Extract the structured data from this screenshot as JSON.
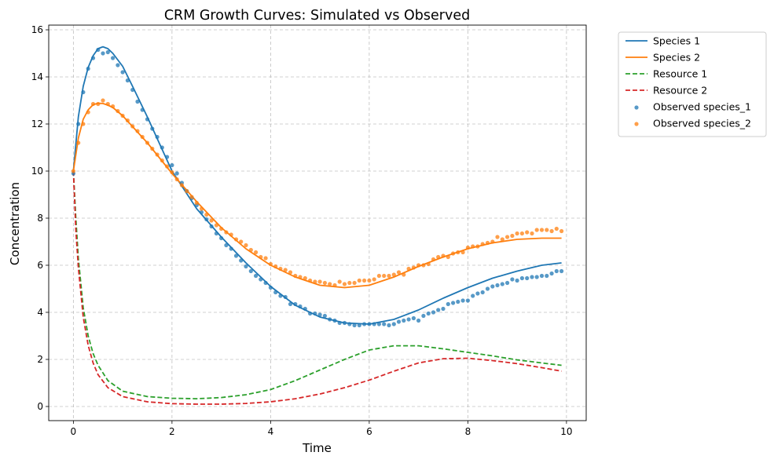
{
  "chart_data": {
    "type": "line",
    "title": "CRM Growth Curves: Simulated vs Observed",
    "xlabel": "Time",
    "ylabel": "Concentration",
    "xlim": [
      -0.5,
      10.4
    ],
    "ylim": [
      -0.6,
      16.2
    ],
    "xticks": [
      0,
      2,
      4,
      6,
      8,
      10
    ],
    "yticks": [
      0,
      2,
      4,
      6,
      8,
      10,
      12,
      14,
      16
    ],
    "grid": true,
    "legend_position": "outside top-right",
    "series": [
      {
        "name": "Species 1",
        "style": "solid",
        "color": "#1f77b4",
        "x": [
          0,
          0.1,
          0.2,
          0.3,
          0.4,
          0.5,
          0.6,
          0.7,
          0.8,
          1.0,
          1.2,
          1.5,
          2.0,
          2.5,
          3.0,
          3.5,
          4.0,
          4.5,
          5.0,
          5.5,
          6.0,
          6.5,
          7.0,
          7.5,
          8.0,
          8.5,
          9.0,
          9.5,
          9.9
        ],
        "y": [
          10.0,
          12.3,
          13.6,
          14.4,
          14.9,
          15.2,
          15.28,
          15.2,
          15.0,
          14.45,
          13.6,
          12.3,
          10.0,
          8.4,
          7.2,
          6.1,
          5.1,
          4.3,
          3.8,
          3.55,
          3.5,
          3.7,
          4.1,
          4.6,
          5.05,
          5.45,
          5.75,
          6.0,
          6.1
        ]
      },
      {
        "name": "Species 2",
        "style": "solid",
        "color": "#ff7f0e",
        "x": [
          0,
          0.1,
          0.2,
          0.3,
          0.4,
          0.5,
          0.6,
          0.7,
          0.8,
          1.0,
          1.5,
          2.0,
          2.5,
          3.0,
          3.5,
          4.0,
          4.5,
          5.0,
          5.5,
          6.0,
          6.5,
          7.0,
          7.5,
          8.0,
          8.5,
          9.0,
          9.5,
          9.9
        ],
        "y": [
          10.0,
          11.4,
          12.2,
          12.6,
          12.82,
          12.88,
          12.87,
          12.8,
          12.7,
          12.35,
          11.2,
          9.9,
          8.7,
          7.6,
          6.7,
          6.0,
          5.5,
          5.15,
          5.05,
          5.15,
          5.5,
          5.95,
          6.35,
          6.7,
          6.95,
          7.1,
          7.15,
          7.15
        ]
      },
      {
        "name": "Resource 1",
        "style": "dashed",
        "color": "#2ca02c",
        "x": [
          0,
          0.05,
          0.1,
          0.2,
          0.3,
          0.4,
          0.5,
          0.7,
          1.0,
          1.5,
          2.0,
          2.5,
          3.0,
          3.5,
          4.0,
          4.5,
          5.0,
          5.5,
          6.0,
          6.5,
          7.0,
          7.5,
          8.0,
          8.5,
          9.0,
          9.5,
          9.9
        ],
        "y": [
          10.0,
          8.0,
          6.3,
          4.2,
          3.0,
          2.25,
          1.75,
          1.1,
          0.65,
          0.42,
          0.35,
          0.33,
          0.38,
          0.5,
          0.72,
          1.1,
          1.55,
          2.0,
          2.4,
          2.58,
          2.58,
          2.45,
          2.3,
          2.15,
          1.98,
          1.85,
          1.75
        ]
      },
      {
        "name": "Resource 2",
        "style": "dashed",
        "color": "#d62728",
        "x": [
          0,
          0.05,
          0.1,
          0.2,
          0.3,
          0.4,
          0.5,
          0.7,
          1.0,
          1.5,
          2.0,
          2.5,
          3.0,
          3.5,
          4.0,
          4.5,
          5.0,
          5.5,
          6.0,
          6.5,
          7.0,
          7.5,
          8.0,
          8.5,
          9.0,
          9.5,
          9.9
        ],
        "y": [
          10.0,
          7.5,
          5.9,
          3.8,
          2.6,
          1.85,
          1.35,
          0.8,
          0.42,
          0.2,
          0.12,
          0.1,
          0.1,
          0.13,
          0.2,
          0.33,
          0.53,
          0.8,
          1.12,
          1.5,
          1.85,
          2.03,
          2.05,
          1.95,
          1.82,
          1.65,
          1.5
        ]
      }
    ],
    "scatter_series": [
      {
        "name": "Observed species_1",
        "color": "#1f77b4",
        "x": [
          0,
          0.1,
          0.2,
          0.3,
          0.4,
          0.5,
          0.6,
          0.7,
          0.8,
          0.9,
          1.0,
          1.1,
          1.2,
          1.3,
          1.4,
          1.5,
          1.6,
          1.7,
          1.8,
          1.9,
          2.0,
          2.1,
          2.2,
          2.3,
          2.4,
          2.5,
          2.6,
          2.7,
          2.8,
          2.9,
          3.0,
          3.1,
          3.2,
          3.3,
          3.4,
          3.5,
          3.6,
          3.7,
          3.8,
          3.9,
          4.0,
          4.1,
          4.2,
          4.3,
          4.4,
          4.5,
          4.6,
          4.7,
          4.8,
          4.9,
          5.0,
          5.1,
          5.2,
          5.3,
          5.4,
          5.5,
          5.6,
          5.7,
          5.8,
          5.9,
          6.0,
          6.1,
          6.2,
          6.3,
          6.4,
          6.5,
          6.6,
          6.7,
          6.8,
          6.9,
          7.0,
          7.1,
          7.2,
          7.3,
          7.4,
          7.5,
          7.6,
          7.7,
          7.8,
          7.9,
          8.0,
          8.1,
          8.2,
          8.3,
          8.4,
          8.5,
          8.6,
          8.7,
          8.8,
          8.9,
          9.0,
          9.1,
          9.2,
          9.3,
          9.4,
          9.5,
          9.6,
          9.7,
          9.8,
          9.9
        ],
        "y": [
          9.9,
          12.0,
          13.35,
          14.35,
          14.8,
          15.15,
          15.0,
          15.05,
          14.8,
          14.5,
          14.2,
          13.85,
          13.45,
          12.95,
          12.6,
          12.2,
          11.8,
          11.45,
          11.0,
          10.6,
          10.25,
          9.9,
          9.5,
          9.15,
          8.85,
          8.55,
          8.25,
          7.95,
          7.65,
          7.35,
          7.15,
          6.85,
          6.7,
          6.4,
          6.2,
          5.95,
          5.75,
          5.55,
          5.4,
          5.25,
          5.05,
          4.85,
          4.7,
          4.65,
          4.35,
          4.35,
          4.25,
          4.15,
          3.95,
          3.95,
          3.9,
          3.85,
          3.7,
          3.65,
          3.55,
          3.55,
          3.5,
          3.45,
          3.45,
          3.5,
          3.5,
          3.5,
          3.5,
          3.5,
          3.45,
          3.5,
          3.6,
          3.65,
          3.7,
          3.75,
          3.65,
          3.85,
          3.95,
          4.0,
          4.1,
          4.15,
          4.35,
          4.4,
          4.45,
          4.5,
          4.5,
          4.7,
          4.8,
          4.85,
          5.0,
          5.1,
          5.15,
          5.2,
          5.25,
          5.4,
          5.35,
          5.45,
          5.45,
          5.5,
          5.5,
          5.55,
          5.55,
          5.65,
          5.75,
          5.75
        ]
      },
      {
        "name": "Observed species_2",
        "color": "#ff7f0e",
        "x": [
          0,
          0.1,
          0.2,
          0.3,
          0.4,
          0.5,
          0.6,
          0.7,
          0.8,
          0.9,
          1.0,
          1.1,
          1.2,
          1.3,
          1.4,
          1.5,
          1.6,
          1.7,
          1.8,
          1.9,
          2.0,
          2.1,
          2.2,
          2.3,
          2.4,
          2.5,
          2.6,
          2.7,
          2.8,
          2.9,
          3.0,
          3.1,
          3.2,
          3.3,
          3.4,
          3.5,
          3.6,
          3.7,
          3.8,
          3.9,
          4.0,
          4.1,
          4.2,
          4.3,
          4.4,
          4.5,
          4.6,
          4.7,
          4.8,
          4.9,
          5.0,
          5.1,
          5.2,
          5.3,
          5.4,
          5.5,
          5.6,
          5.7,
          5.8,
          5.9,
          6.0,
          6.1,
          6.2,
          6.3,
          6.4,
          6.5,
          6.6,
          6.7,
          6.8,
          6.9,
          7.0,
          7.1,
          7.2,
          7.3,
          7.4,
          7.5,
          7.6,
          7.7,
          7.8,
          7.9,
          8.0,
          8.1,
          8.2,
          8.3,
          8.4,
          8.5,
          8.6,
          8.7,
          8.8,
          8.9,
          9.0,
          9.1,
          9.2,
          9.3,
          9.4,
          9.5,
          9.6,
          9.7,
          9.8,
          9.9
        ],
        "y": [
          10.0,
          11.2,
          12.0,
          12.5,
          12.85,
          12.85,
          13.0,
          12.85,
          12.75,
          12.55,
          12.35,
          12.15,
          11.9,
          11.7,
          11.45,
          11.2,
          10.95,
          10.7,
          10.45,
          10.2,
          9.95,
          9.65,
          9.4,
          9.15,
          8.9,
          8.65,
          8.4,
          8.15,
          7.9,
          7.7,
          7.55,
          7.4,
          7.3,
          7.1,
          7.0,
          6.85,
          6.65,
          6.55,
          6.35,
          6.3,
          6.05,
          5.95,
          5.85,
          5.8,
          5.7,
          5.55,
          5.5,
          5.45,
          5.35,
          5.3,
          5.3,
          5.25,
          5.2,
          5.15,
          5.3,
          5.2,
          5.25,
          5.25,
          5.35,
          5.35,
          5.35,
          5.4,
          5.55,
          5.55,
          5.55,
          5.6,
          5.7,
          5.6,
          5.85,
          5.9,
          6.0,
          6.0,
          6.05,
          6.25,
          6.35,
          6.4,
          6.35,
          6.5,
          6.55,
          6.55,
          6.75,
          6.8,
          6.8,
          6.9,
          6.95,
          7.0,
          7.2,
          7.1,
          7.2,
          7.25,
          7.35,
          7.35,
          7.4,
          7.35,
          7.5,
          7.5,
          7.5,
          7.45,
          7.55,
          7.45
        ]
      }
    ]
  }
}
